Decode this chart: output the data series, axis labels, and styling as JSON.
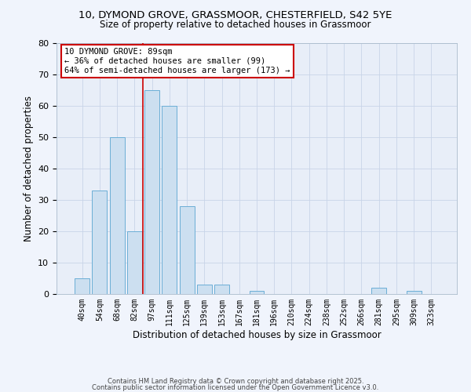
{
  "title1": "10, DYMOND GROVE, GRASSMOOR, CHESTERFIELD, S42 5YE",
  "title2": "Size of property relative to detached houses in Grassmoor",
  "xlabel": "Distribution of detached houses by size in Grassmoor",
  "ylabel": "Number of detached properties",
  "bar_labels": [
    "40sqm",
    "54sqm",
    "68sqm",
    "82sqm",
    "97sqm",
    "111sqm",
    "125sqm",
    "139sqm",
    "153sqm",
    "167sqm",
    "181sqm",
    "196sqm",
    "210sqm",
    "224sqm",
    "238sqm",
    "252sqm",
    "266sqm",
    "281sqm",
    "295sqm",
    "309sqm",
    "323sqm"
  ],
  "bar_values": [
    5,
    33,
    50,
    20,
    65,
    60,
    28,
    3,
    3,
    0,
    1,
    0,
    0,
    0,
    0,
    0,
    0,
    2,
    0,
    1,
    0
  ],
  "bar_color": "#ccdff0",
  "bar_edge_color": "#6baed6",
  "grid_color": "#c8d4e8",
  "background_color": "#e8eef8",
  "fig_background": "#f0f4fc",
  "vline_x": 3.5,
  "vline_color": "#cc0000",
  "annotation_line1": "10 DYMOND GROVE: 89sqm",
  "annotation_line2": "← 36% of detached houses are smaller (99)",
  "annotation_line3": "64% of semi-detached houses are larger (173) →",
  "annotation_box_color": "#ffffff",
  "annotation_box_edge": "#cc0000",
  "ylim": [
    0,
    80
  ],
  "yticks": [
    0,
    10,
    20,
    30,
    40,
    50,
    60,
    70,
    80
  ],
  "footer1": "Contains HM Land Registry data © Crown copyright and database right 2025.",
  "footer2": "Contains public sector information licensed under the Open Government Licence v3.0."
}
